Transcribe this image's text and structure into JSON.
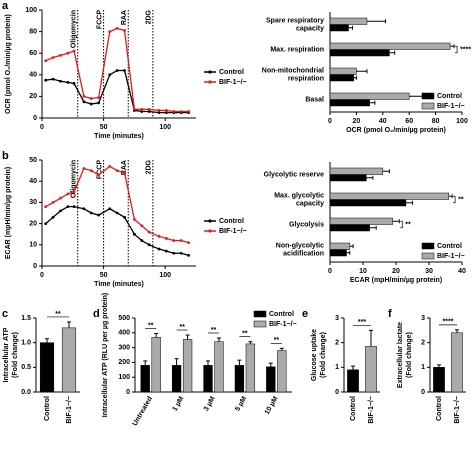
{
  "chart_data": [
    {
      "type": "line",
      "panel_label": "a",
      "xlabel": "Time (minutes)",
      "ylabel": "OCR (pmol O₂/min/µg protein)",
      "x": [
        3,
        9,
        15,
        21,
        26,
        34,
        40,
        46,
        55,
        61,
        67,
        75,
        81,
        87,
        95,
        101,
        107,
        113,
        119
      ],
      "series": [
        {
          "name": "Control",
          "color": "#000000",
          "values": [
            35,
            36,
            34,
            33,
            32,
            15,
            13,
            14,
            40,
            44,
            44,
            7,
            6,
            6,
            5,
            5,
            5,
            5,
            5
          ]
        },
        {
          "name": "BIF-1−/−",
          "color": "#e41a1c",
          "values": [
            53,
            56,
            58,
            60,
            62,
            20,
            18,
            19,
            80,
            83,
            81,
            8,
            8,
            8,
            7,
            7,
            6,
            6,
            6
          ]
        }
      ],
      "annotations": [
        {
          "label": "Oligomycin",
          "x": 29
        },
        {
          "label": "FCCP",
          "x": 50
        },
        {
          "label": "RAA",
          "x": 70
        },
        {
          "label": "2DG",
          "x": 90
        }
      ],
      "xlim": [
        0,
        125
      ],
      "xticks": [
        0,
        50,
        100
      ],
      "ylim": [
        0,
        100
      ],
      "yticks": [
        0,
        20,
        40,
        60,
        80,
        100
      ],
      "legend": "right"
    },
    {
      "type": "hbar",
      "xlabel": "OCR (pmol O₂/min/µg protein)",
      "categories": [
        [
          "Spare respiratory",
          "capacity"
        ],
        [
          "Max. respiration"
        ],
        [
          "Non-mitochondrial",
          "respiration"
        ],
        [
          "Basal"
        ]
      ],
      "series": [
        {
          "name": "Control",
          "color": "#000000",
          "values": [
            14,
            45,
            18,
            30
          ],
          "errors": [
            3,
            4,
            2,
            4
          ]
        },
        {
          "name": "BIF-1−/−",
          "color": "#aaaaaa",
          "values": [
            28,
            91,
            20,
            60
          ],
          "errors": [
            14,
            3,
            8,
            10
          ]
        }
      ],
      "significance": [
        {
          "category": 1,
          "label": "****"
        }
      ],
      "xlim": [
        0,
        100
      ],
      "xticks": [
        0,
        20,
        40,
        60,
        80,
        100
      ],
      "legend": "lower right"
    },
    {
      "type": "line",
      "panel_label": "b",
      "xlabel": "Time (minutes)",
      "ylabel": "ECAR (mpH/min/µg protein)",
      "x": [
        3,
        9,
        15,
        21,
        26,
        34,
        40,
        46,
        55,
        61,
        67,
        75,
        81,
        87,
        95,
        101,
        107,
        113,
        119
      ],
      "series": [
        {
          "name": "Control",
          "color": "#000000",
          "values": [
            20,
            23,
            26,
            28,
            28,
            27,
            25,
            24,
            27,
            25,
            23,
            15,
            12,
            10,
            8,
            7,
            6,
            6,
            5
          ]
        },
        {
          "name": "BIF-1−/−",
          "color": "#e41a1c",
          "values": [
            28,
            30,
            32,
            34,
            35,
            46,
            45,
            43,
            47,
            45,
            44,
            22,
            19,
            16,
            14,
            13,
            12,
            12,
            11
          ]
        }
      ],
      "annotations": [
        {
          "label": "Oligomycin",
          "x": 29
        },
        {
          "label": "FCCP",
          "x": 50
        },
        {
          "label": "RAA",
          "x": 70
        },
        {
          "label": "2DG",
          "x": 90
        }
      ],
      "xlim": [
        0,
        125
      ],
      "xticks": [
        0,
        50,
        100
      ],
      "ylim": [
        0,
        50
      ],
      "yticks": [
        0,
        10,
        20,
        30,
        40,
        50
      ],
      "legend": "right"
    },
    {
      "type": "hbar",
      "xlabel": "ECAR (mpH/min/µg protein)",
      "categories": [
        [
          "Glycolytic reserve"
        ],
        [
          "Max. glycolytic",
          "capacity"
        ],
        [
          "Glycolysis"
        ],
        [
          "Non-glycolytic",
          "acidification"
        ]
      ],
      "series": [
        {
          "name": "Control",
          "color": "#000000",
          "values": [
            11,
            23,
            12,
            5
          ],
          "errors": [
            2,
            2,
            2,
            1
          ]
        },
        {
          "name": "BIF-1−/−",
          "color": "#aaaaaa",
          "values": [
            16,
            36,
            19,
            6
          ],
          "errors": [
            2,
            1,
            2,
            1
          ]
        }
      ],
      "significance": [
        {
          "category": 1,
          "label": "**"
        },
        {
          "category": 2,
          "label": "**"
        }
      ],
      "xlim": [
        0,
        40
      ],
      "xticks": [
        0,
        10,
        20,
        30,
        40
      ],
      "legend": "lower right"
    },
    {
      "type": "bar",
      "panel_label": "c",
      "ylabel": [
        "Intracellular ATP",
        "(Fold change)"
      ],
      "categories": [
        "Control",
        "BIF-1−/−"
      ],
      "values": [
        1.0,
        1.3
      ],
      "errors": [
        0.08,
        0.12
      ],
      "colors": [
        "#000000",
        "#aaaaaa"
      ],
      "significance": "**",
      "ylim": [
        0,
        1.5
      ],
      "yticks": [
        {
          "value": 0,
          "label": "0.0"
        },
        0.5,
        {
          "value": 1,
          "label": "1.0"
        },
        1.5
      ]
    },
    {
      "type": "groupbar",
      "panel_label": "d",
      "ylabel": "Intracellular ATP (RLU per µg protein)",
      "categories": [
        "Untreated",
        "1 µM",
        "3 µM",
        "5 µM",
        "10 µM"
      ],
      "series": [
        {
          "name": "Control",
          "color": "#000000",
          "values": [
            180,
            180,
            180,
            180,
            170
          ],
          "errors": [
            30,
            45,
            30,
            35,
            25
          ]
        },
        {
          "name": "BIF-1−/−",
          "color": "#aaaaaa",
          "values": [
            370,
            355,
            340,
            325,
            280
          ],
          "errors": [
            25,
            30,
            25,
            15,
            15
          ]
        }
      ],
      "significance": [
        "**",
        "**",
        "**",
        "**",
        "**"
      ],
      "ylim": [
        0,
        500
      ],
      "yticks": [
        0,
        100,
        200,
        300,
        400,
        500
      ],
      "legend": "upper right"
    },
    {
      "type": "bar",
      "panel_label": "e",
      "ylabel": [
        "Glucose uptake",
        "(Fold change)"
      ],
      "categories": [
        "Control",
        "BIF-1−/−"
      ],
      "values": [
        0.9,
        1.85
      ],
      "errors": [
        0.15,
        0.65
      ],
      "colors": [
        "#000000",
        "#aaaaaa"
      ],
      "significance": "***",
      "ylim": [
        0,
        3
      ],
      "yticks": [
        0,
        1,
        2,
        3
      ]
    },
    {
      "type": "bar",
      "panel_label": "f",
      "ylabel": [
        "Extracellular lactate",
        "(Fold change)"
      ],
      "categories": [
        "Control",
        "BIF-1−/−"
      ],
      "values": [
        1.0,
        2.4
      ],
      "errors": [
        0.1,
        0.12
      ],
      "colors": [
        "#000000",
        "#aaaaaa"
      ],
      "significance": "****",
      "ylim": [
        0,
        3
      ],
      "yticks": [
        0,
        1,
        2,
        3
      ]
    }
  ]
}
